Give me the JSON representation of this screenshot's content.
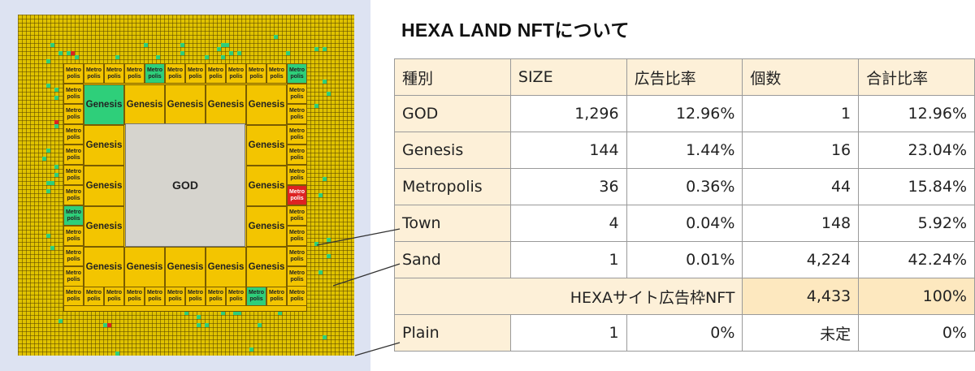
{
  "title": "HEXA LAND NFTについて",
  "map": {
    "god_label": "GOD",
    "genesis_label": "Genesis",
    "metro_label": "Metro\npolis"
  },
  "table": {
    "headers": [
      "種別",
      "SIZE",
      "広告比率",
      "個数",
      "合計比率"
    ],
    "rows": [
      {
        "type": "GOD",
        "size": "1,296",
        "ad_ratio": "12.96%",
        "count": "1",
        "total_ratio": "12.96%"
      },
      {
        "type": "Genesis",
        "size": "144",
        "ad_ratio": "1.44%",
        "count": "16",
        "total_ratio": "23.04%"
      },
      {
        "type": "Metropolis",
        "size": "36",
        "ad_ratio": "0.36%",
        "count": "44",
        "total_ratio": "15.84%"
      },
      {
        "type": "Town",
        "size": "4",
        "ad_ratio": "0.04%",
        "count": "148",
        "total_ratio": "5.92%"
      },
      {
        "type": "Sand",
        "size": "1",
        "ad_ratio": "0.01%",
        "count": "4,224",
        "total_ratio": "42.24%"
      }
    ],
    "total": {
      "label": "HEXAサイト広告枠NFT",
      "count": "4,433",
      "total_ratio": "100%"
    },
    "plain": {
      "type": "Plain",
      "size": "1",
      "ad_ratio": "0%",
      "count": "未定",
      "total_ratio": "0%"
    }
  },
  "colors": {
    "genesis": "#f3c500",
    "highlight_green": "#2ecf7a",
    "highlight_red": "#dd2222",
    "god": "#d6d4ce",
    "table_header": "#fdf0d8",
    "map_background": "#dde3f2"
  }
}
